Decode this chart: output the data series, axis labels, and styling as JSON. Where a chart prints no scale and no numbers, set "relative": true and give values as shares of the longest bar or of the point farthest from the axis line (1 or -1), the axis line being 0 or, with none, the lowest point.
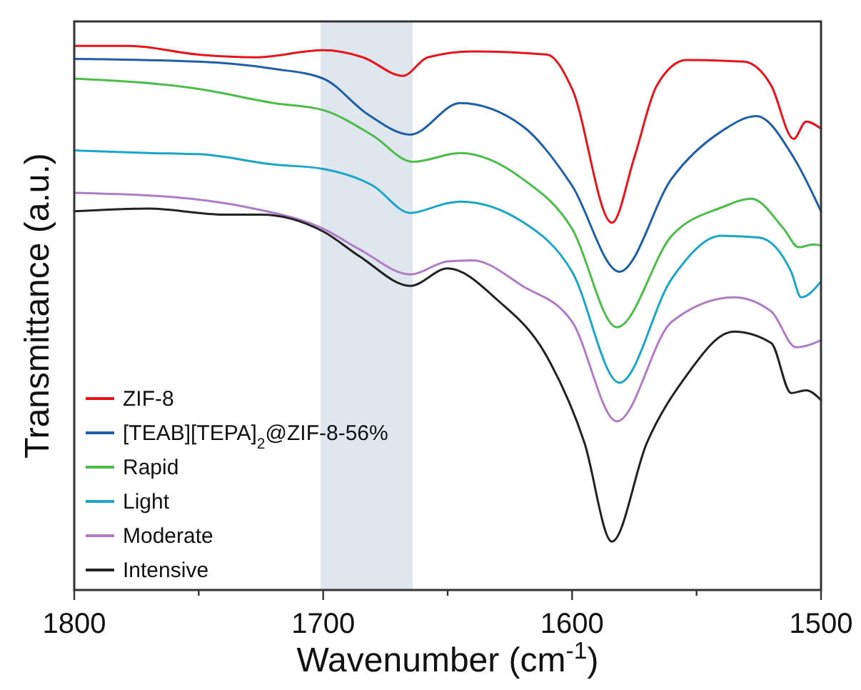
{
  "chart_data": {
    "type": "line",
    "xlabel": "Wavenumber (cm$^{-1}$)",
    "ylabel": "Transmittance (a.u.)",
    "relative": true,
    "xlim": [
      1800,
      1500
    ],
    "xticks": [
      1800,
      {
        "value": 1750,
        "label": null
      },
      1700,
      {
        "value": 1650,
        "label": null
      },
      1600,
      {
        "value": 1550,
        "label": null
      },
      1500
    ],
    "legend": "bottom left",
    "bands": [
      {
        "axis": "x",
        "from": 1701,
        "to": 1664,
        "color": "#dfe6ee"
      }
    ],
    "series": [
      {
        "name": "ZIF-8",
        "color": "#e8141b",
        "x": [
          1800,
          1778,
          1750,
          1727,
          1700,
          1684,
          1668,
          1658,
          1640,
          1610,
          1600,
          1584,
          1575,
          1566,
          1554,
          1531,
          1520,
          1511,
          1506,
          1500
        ],
        "values": [
          1.0,
          1.0,
          0.984,
          0.979,
          0.992,
          0.979,
          0.945,
          0.979,
          0.99,
          0.984,
          0.921,
          0.675,
          0.795,
          0.927,
          0.974,
          0.971,
          0.927,
          0.829,
          0.861,
          0.848
        ]
      },
      {
        "name": "[TEAB][TEPA]$_{2}$@ZIF-8-56%",
        "color": "#1f5fa8",
        "x": [
          1800,
          1750,
          1720,
          1700,
          1682,
          1665,
          1645,
          1620,
          1600,
          1581,
          1560,
          1540,
          1526,
          1511,
          1500
        ],
        "values": [
          0.976,
          0.971,
          0.958,
          0.94,
          0.874,
          0.837,
          0.895,
          0.853,
          0.743,
          0.585,
          0.756,
          0.843,
          0.871,
          0.795,
          0.696
        ]
      },
      {
        "name": "Rapid",
        "color": "#4cbc4a",
        "x": [
          1800,
          1750,
          1720,
          1700,
          1680,
          1664,
          1645,
          1620,
          1600,
          1582,
          1560,
          1540,
          1528,
          1515,
          1509,
          1503,
          1500
        ],
        "values": [
          0.94,
          0.921,
          0.895,
          0.882,
          0.835,
          0.787,
          0.803,
          0.756,
          0.664,
          0.483,
          0.651,
          0.703,
          0.719,
          0.664,
          0.63,
          0.635,
          0.633
        ]
      },
      {
        "name": "Light",
        "color": "#1ba6c8",
        "x": [
          1800,
          1770,
          1750,
          1720,
          1700,
          1680,
          1665,
          1650,
          1645,
          1620,
          1600,
          1581,
          1560,
          1540,
          1525,
          1512,
          1508,
          1500
        ],
        "values": [
          0.808,
          0.803,
          0.801,
          0.782,
          0.774,
          0.743,
          0.693,
          0.711,
          0.714,
          0.677,
          0.585,
          0.381,
          0.572,
          0.651,
          0.648,
          0.585,
          0.538,
          0.567
        ]
      },
      {
        "name": "Moderate",
        "color": "#b07cc6",
        "x": [
          1800,
          1760,
          1730,
          1700,
          1685,
          1665,
          1650,
          1640,
          1620,
          1600,
          1582,
          1560,
          1535,
          1520,
          1510,
          1500
        ],
        "values": [
          0.73,
          0.722,
          0.703,
          0.664,
          0.625,
          0.58,
          0.604,
          0.606,
          0.559,
          0.493,
          0.31,
          0.493,
          0.538,
          0.512,
          0.446,
          0.459
        ]
      },
      {
        "name": "Intensive",
        "color": "#222222",
        "x": [
          1800,
          1770,
          1740,
          1725,
          1700,
          1685,
          1665,
          1650,
          1630,
          1610,
          1595,
          1584,
          1570,
          1555,
          1535,
          1520,
          1512,
          1506,
          1500
        ],
        "values": [
          0.696,
          0.701,
          0.69,
          0.69,
          0.659,
          0.612,
          0.559,
          0.591,
          0.533,
          0.428,
          0.27,
          0.089,
          0.27,
          0.388,
          0.475,
          0.454,
          0.362,
          0.367,
          0.349
        ]
      }
    ]
  }
}
